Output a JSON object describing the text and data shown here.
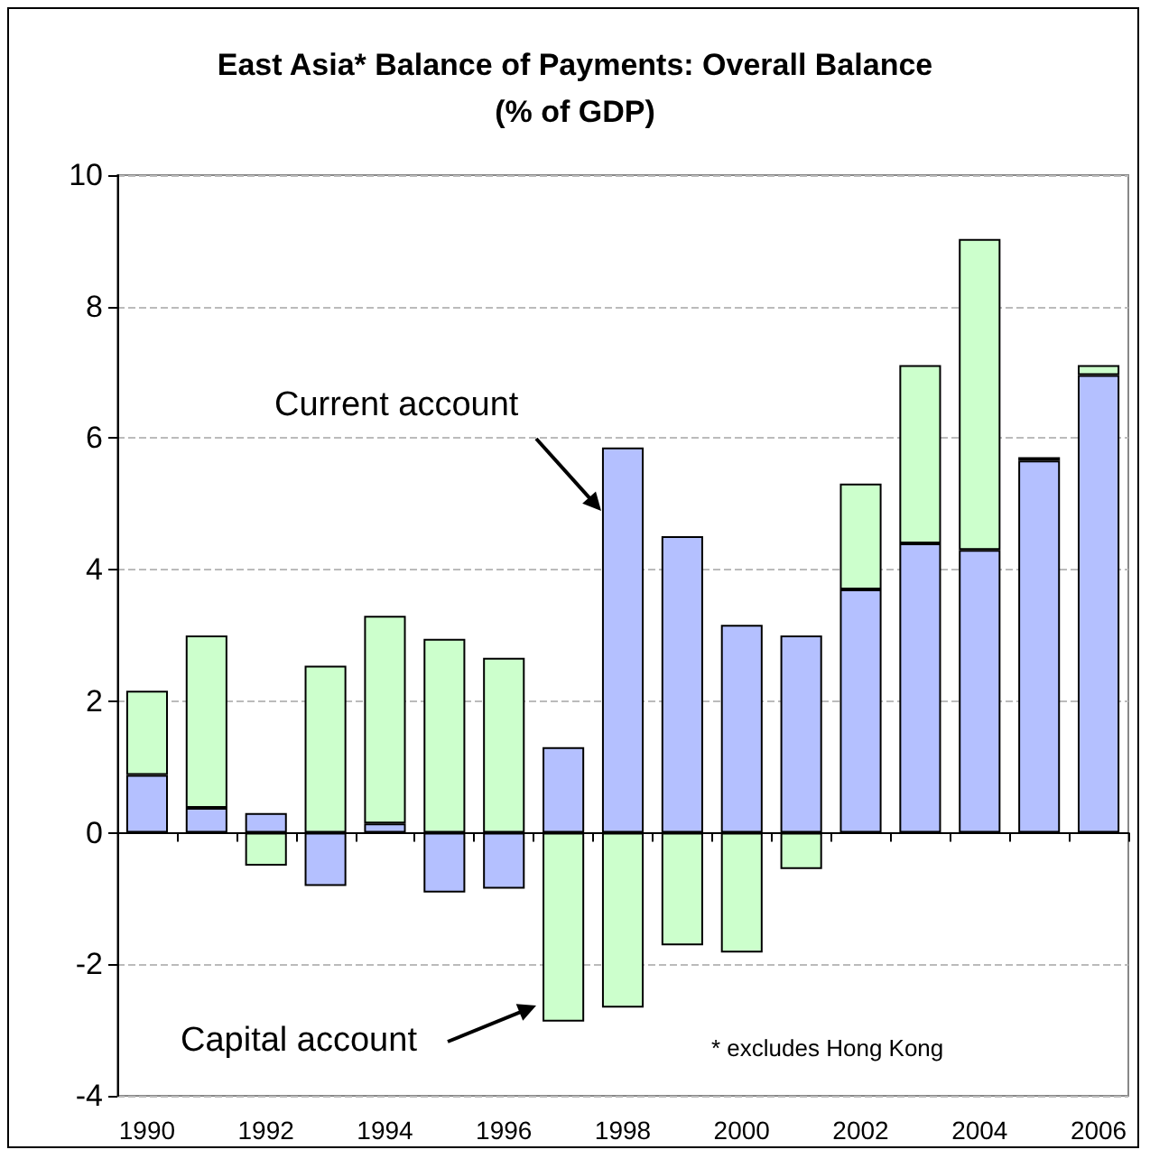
{
  "chart_data": {
    "type": "bar",
    "title": "East Asia* Balance of Payments: Overall Balance",
    "subtitle": "(% of GDP)",
    "categories": [
      "1990",
      null,
      "1992",
      null,
      "1994",
      null,
      "1996",
      null,
      "1998",
      null,
      "2000",
      null,
      "2002",
      null,
      "2004",
      null,
      "2006"
    ],
    "stacked": true,
    "series": [
      {
        "color": "#b4c0ff",
        "values": [
          0.88,
          0.38,
          0.3,
          -0.81,
          0.14,
          -0.91,
          -0.85,
          1.3,
          5.86,
          4.51,
          3.16,
          3.0,
          3.7,
          4.4,
          4.3,
          5.66,
          6.96
        ]
      },
      {
        "color": "#ccffcc",
        "values": [
          1.28,
          2.62,
          -0.5,
          2.54,
          3.16,
          2.95,
          2.66,
          -2.87,
          -2.66,
          -1.71,
          -1.82,
          -0.55,
          1.61,
          2.71,
          4.73,
          0.05,
          0.15
        ]
      }
    ],
    "ylim": [
      -4,
      10
    ],
    "yticks": [
      -4,
      -2,
      0,
      2,
      4,
      6,
      8,
      10
    ],
    "grid": "y",
    "annotations": [
      "Current account",
      "Capital account",
      "* excludes Hong Kong"
    ]
  }
}
